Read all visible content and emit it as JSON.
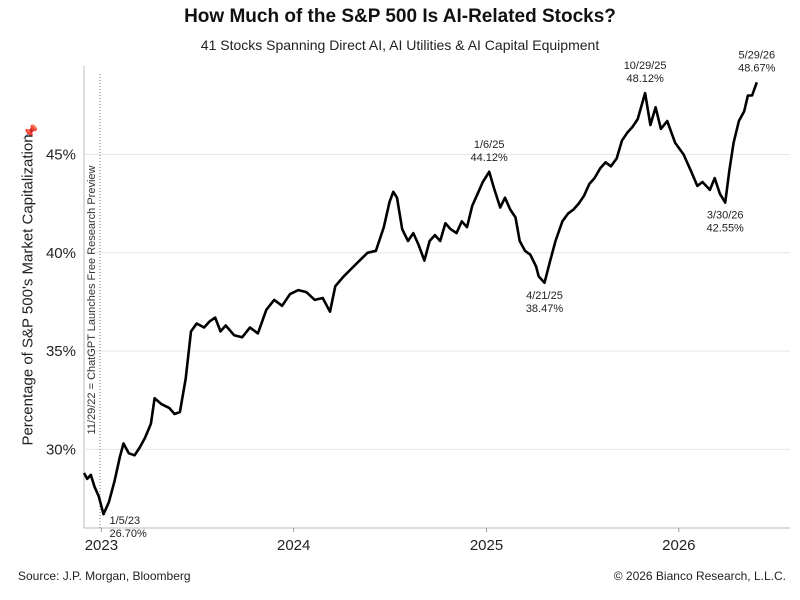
{
  "chart_data": {
    "type": "line",
    "title": "How Much of the S&P 500 Is AI-Related Stocks?",
    "subtitle": "41 Stocks Spanning Direct AI, AI Utilities & AI Capital Equipment",
    "ylabel": "Percentage of S&P 500's Market Capitalization",
    "xlabel": "",
    "x_ticks": [
      "2023",
      "2024",
      "2025",
      "2026"
    ],
    "y_ticks": [
      "30%",
      "35%",
      "40%",
      "45%"
    ],
    "ylim": [
      26,
      49.5
    ],
    "xlim": [
      "2022-11-29",
      "2026-07-31"
    ],
    "grid": "horizontal",
    "vertical_marker": {
      "date": "2022-11-29",
      "label": "11/29/22 = ChatGPT Launches Free Research Preview"
    },
    "series": [
      {
        "color": "#000000",
        "points": [
          [
            "2022-11-29",
            28.8
          ],
          [
            "2022-12-05",
            28.5
          ],
          [
            "2022-12-12",
            28.7
          ],
          [
            "2022-12-19",
            28.1
          ],
          [
            "2022-12-27",
            27.6
          ],
          [
            "2023-01-05",
            26.7
          ],
          [
            "2023-01-15",
            27.3
          ],
          [
            "2023-01-26",
            28.4
          ],
          [
            "2023-02-05",
            29.6
          ],
          [
            "2023-02-12",
            30.3
          ],
          [
            "2023-02-22",
            29.8
          ],
          [
            "2023-03-05",
            29.7
          ],
          [
            "2023-03-15",
            30.1
          ],
          [
            "2023-03-25",
            30.6
          ],
          [
            "2023-04-05",
            31.3
          ],
          [
            "2023-04-12",
            32.6
          ],
          [
            "2023-04-25",
            32.3
          ],
          [
            "2023-05-10",
            32.1
          ],
          [
            "2023-05-20",
            31.8
          ],
          [
            "2023-05-30",
            31.9
          ],
          [
            "2023-06-10",
            33.6
          ],
          [
            "2023-06-20",
            36.0
          ],
          [
            "2023-07-01",
            36.4
          ],
          [
            "2023-07-15",
            36.2
          ],
          [
            "2023-07-25",
            36.5
          ],
          [
            "2023-08-05",
            36.7
          ],
          [
            "2023-08-15",
            36.0
          ],
          [
            "2023-08-25",
            36.3
          ],
          [
            "2023-09-10",
            35.8
          ],
          [
            "2023-09-25",
            35.7
          ],
          [
            "2023-10-10",
            36.2
          ],
          [
            "2023-10-25",
            35.9
          ],
          [
            "2023-11-10",
            37.1
          ],
          [
            "2023-11-25",
            37.6
          ],
          [
            "2023-12-10",
            37.3
          ],
          [
            "2023-12-25",
            37.9
          ],
          [
            "2024-01-10",
            38.1
          ],
          [
            "2024-01-25",
            38.0
          ],
          [
            "2024-02-10",
            37.6
          ],
          [
            "2024-02-25",
            37.7
          ],
          [
            "2024-03-10",
            37.0
          ],
          [
            "2024-03-20",
            38.3
          ],
          [
            "2024-04-05",
            38.8
          ],
          [
            "2024-04-20",
            39.2
          ],
          [
            "2024-05-05",
            39.6
          ],
          [
            "2024-05-20",
            40.0
          ],
          [
            "2024-06-05",
            40.1
          ],
          [
            "2024-06-20",
            41.3
          ],
          [
            "2024-07-01",
            42.6
          ],
          [
            "2024-07-08",
            43.1
          ],
          [
            "2024-07-15",
            42.8
          ],
          [
            "2024-07-25",
            41.2
          ],
          [
            "2024-08-05",
            40.6
          ],
          [
            "2024-08-15",
            41.0
          ],
          [
            "2024-08-25",
            40.4
          ],
          [
            "2024-09-05",
            39.6
          ],
          [
            "2024-09-15",
            40.6
          ],
          [
            "2024-09-25",
            40.9
          ],
          [
            "2024-10-05",
            40.6
          ],
          [
            "2024-10-15",
            41.5
          ],
          [
            "2024-10-25",
            41.2
          ],
          [
            "2024-11-05",
            41.0
          ],
          [
            "2024-11-15",
            41.6
          ],
          [
            "2024-11-25",
            41.3
          ],
          [
            "2024-12-05",
            42.4
          ],
          [
            "2024-12-15",
            43.0
          ],
          [
            "2024-12-25",
            43.6
          ],
          [
            "2025-01-06",
            44.12
          ],
          [
            "2025-01-15",
            43.3
          ],
          [
            "2025-01-27",
            42.3
          ],
          [
            "2025-02-05",
            42.8
          ],
          [
            "2025-02-15",
            42.2
          ],
          [
            "2025-02-25",
            41.8
          ],
          [
            "2025-03-05",
            40.6
          ],
          [
            "2025-03-15",
            40.1
          ],
          [
            "2025-03-25",
            39.9
          ],
          [
            "2025-04-05",
            39.3
          ],
          [
            "2025-04-10",
            38.8
          ],
          [
            "2025-04-21",
            38.47
          ],
          [
            "2025-05-01",
            39.5
          ],
          [
            "2025-05-12",
            40.6
          ],
          [
            "2025-05-25",
            41.6
          ],
          [
            "2025-06-05",
            42.0
          ],
          [
            "2025-06-15",
            42.2
          ],
          [
            "2025-06-25",
            42.5
          ],
          [
            "2025-07-05",
            42.9
          ],
          [
            "2025-07-15",
            43.5
          ],
          [
            "2025-07-25",
            43.8
          ],
          [
            "2025-08-05",
            44.3
          ],
          [
            "2025-08-15",
            44.6
          ],
          [
            "2025-08-25",
            44.4
          ],
          [
            "2025-09-05",
            44.8
          ],
          [
            "2025-09-15",
            45.7
          ],
          [
            "2025-09-25",
            46.1
          ],
          [
            "2025-10-05",
            46.4
          ],
          [
            "2025-10-15",
            46.8
          ],
          [
            "2025-10-29",
            48.12
          ],
          [
            "2025-11-08",
            46.5
          ],
          [
            "2025-11-18",
            47.4
          ],
          [
            "2025-11-28",
            46.3
          ],
          [
            "2025-12-10",
            46.7
          ],
          [
            "2025-12-25",
            45.6
          ],
          [
            "2026-01-10",
            45.0
          ],
          [
            "2026-01-25",
            44.1
          ],
          [
            "2026-02-05",
            43.4
          ],
          [
            "2026-02-15",
            43.6
          ],
          [
            "2026-03-01",
            43.2
          ],
          [
            "2026-03-10",
            43.8
          ],
          [
            "2026-03-20",
            43.0
          ],
          [
            "2026-03-30",
            42.55
          ],
          [
            "2026-04-07",
            44.2
          ],
          [
            "2026-04-15",
            45.6
          ],
          [
            "2026-04-25",
            46.7
          ],
          [
            "2026-05-05",
            47.2
          ],
          [
            "2026-05-12",
            48.0
          ],
          [
            "2026-05-20",
            48.0
          ],
          [
            "2026-05-29",
            48.67
          ]
        ]
      }
    ],
    "annotations": [
      {
        "date": "2023-01-05",
        "value": 26.7,
        "line1": "1/5/23",
        "line2": "26.70%",
        "place": "right-below"
      },
      {
        "date": "2025-01-06",
        "value": 44.12,
        "line1": "1/6/25",
        "line2": "44.12%",
        "place": "above"
      },
      {
        "date": "2025-04-21",
        "value": 38.47,
        "line1": "4/21/25",
        "line2": "38.47%",
        "place": "below"
      },
      {
        "date": "2025-10-29",
        "value": 48.12,
        "line1": "10/29/25",
        "line2": "48.12%",
        "place": "above"
      },
      {
        "date": "2026-03-30",
        "value": 42.55,
        "line1": "3/30/26",
        "line2": "42.55%",
        "place": "below"
      },
      {
        "date": "2026-05-29",
        "value": 48.67,
        "line1": "5/29/26",
        "line2": "48.67%",
        "place": "above"
      }
    ]
  },
  "footer": {
    "source": "Source: J.P. Morgan, Bloomberg",
    "copyright": "© 2026 Bianco Research, L.L.C."
  },
  "icons": {
    "pin": "pin-icon"
  }
}
